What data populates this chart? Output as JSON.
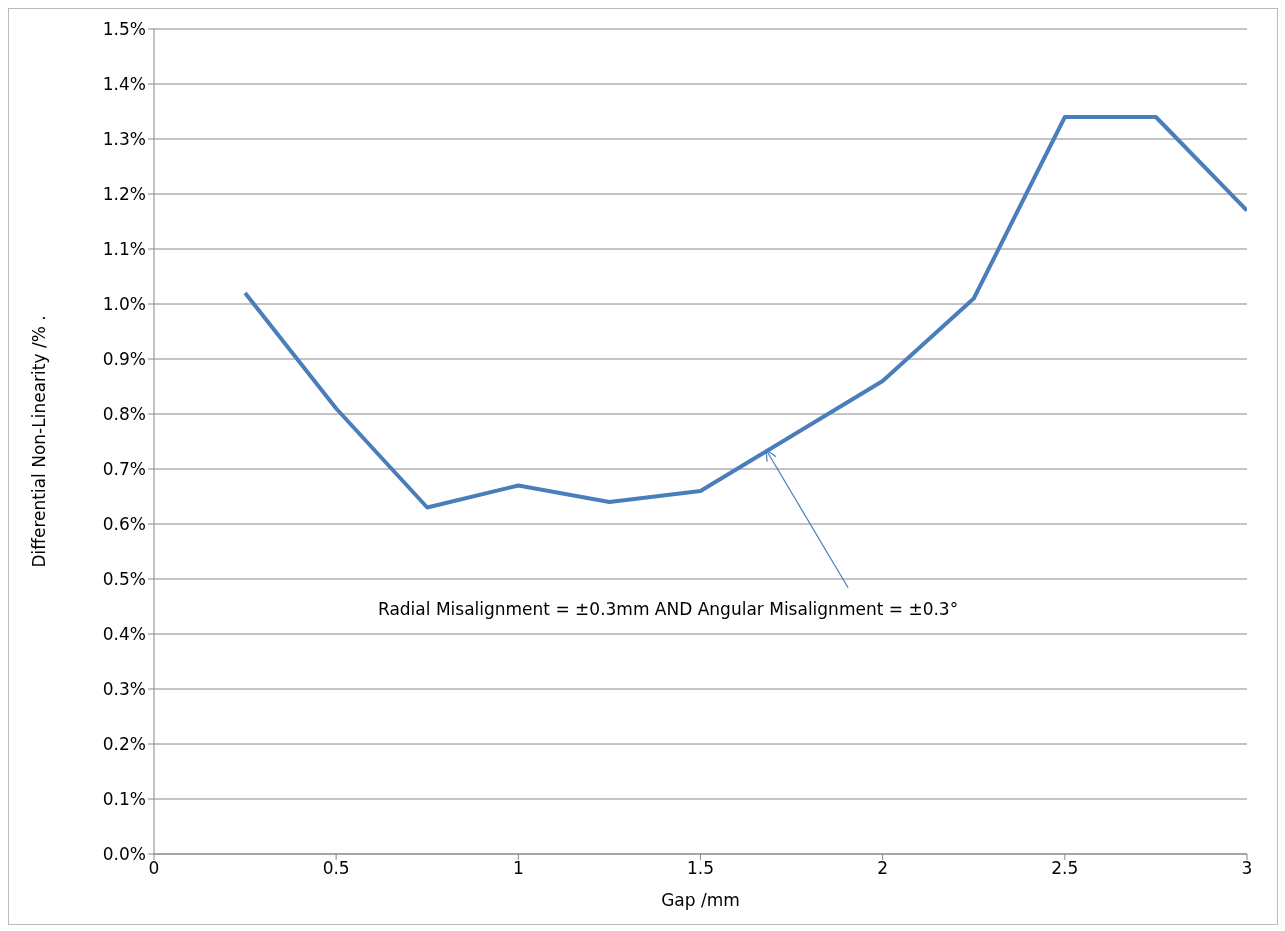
{
  "chart_data": {
    "type": "line",
    "xlabel": "Gap /mm",
    "ylabel": "Differential Non-Linearity /%     .",
    "x": [
      0.25,
      0.5,
      0.75,
      1,
      1.25,
      1.5,
      1.75,
      2,
      2.25,
      2.5,
      2.75,
      3
    ],
    "series": [
      {
        "color": "#4a7ebb",
        "values": [
          1.02,
          0.81,
          0.63,
          0.67,
          0.64,
          0.66,
          0.76,
          0.86,
          1.01,
          1.34,
          1.34,
          1.17
        ]
      }
    ],
    "xlim": [
      0,
      3
    ],
    "xticks": [
      0,
      0.5,
      1,
      1.5,
      2,
      2.5,
      3
    ],
    "ylim": [
      0,
      1.5
    ],
    "yticks": [
      {
        "value": 0,
        "label": "0.0%"
      },
      {
        "value": 0.1,
        "label": "0.1%"
      },
      {
        "value": 0.2,
        "label": "0.2%"
      },
      {
        "value": 0.3,
        "label": "0.3%"
      },
      {
        "value": 0.4,
        "label": "0.4%"
      },
      {
        "value": 0.5,
        "label": "0.5%"
      },
      {
        "value": 0.6,
        "label": "0.6%"
      },
      {
        "value": 0.7,
        "label": "0.7%"
      },
      {
        "value": 0.8,
        "label": "0.8%"
      },
      {
        "value": 0.9,
        "label": "0.9%"
      },
      {
        "value": 1,
        "label": "1.0%"
      },
      {
        "value": 1.1,
        "label": "1.1%"
      },
      {
        "value": 1.2,
        "label": "1.2%"
      },
      {
        "value": 1.3,
        "label": "1.3%"
      },
      {
        "value": 1.4,
        "label": "1.4%"
      },
      {
        "value": 1.5,
        "label": "1.5%"
      }
    ],
    "grid": "y",
    "legend": false,
    "marker": "none",
    "line_style": "solid",
    "annotations": [
      {
        "text": "Radial Misalignment = ±0.3mm AND Angular Misalignment = ±0.3°",
        "x": 1.68,
        "y": 0.735
      }
    ]
  }
}
